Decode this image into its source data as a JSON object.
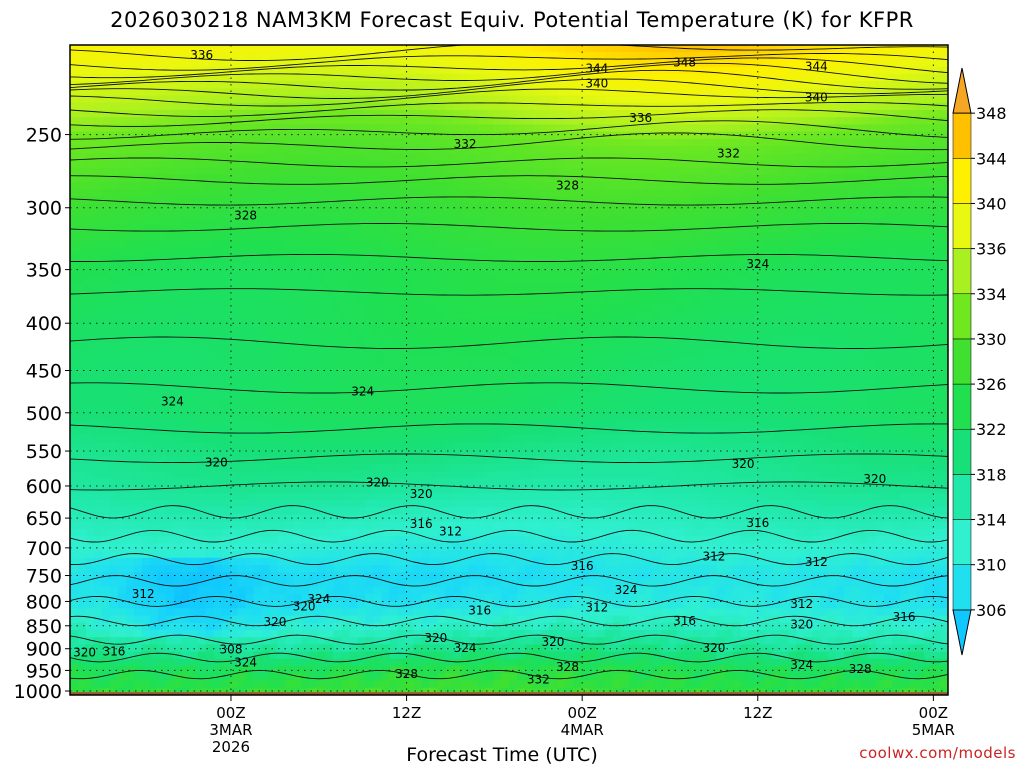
{
  "chart_data": {
    "type": "heatmap",
    "title": "2026030218 NAM3KM Forecast Equiv. Potential Temperature (K) for KFPR",
    "xlabel": "Forecast Time (UTC)",
    "ylabel": "",
    "credit": "coolwx.com/models",
    "y_scale": "log (pressure, hPa)",
    "y_range": [
      200,
      1010
    ],
    "y_ticks": [
      250,
      300,
      350,
      400,
      450,
      500,
      550,
      600,
      650,
      700,
      750,
      800,
      850,
      900,
      950,
      1000
    ],
    "x_range_hours": [
      -5,
      55
    ],
    "x_ticks": [
      {
        "hour": 6,
        "lines": [
          "00Z",
          "3MAR",
          "2026"
        ]
      },
      {
        "hour": 18,
        "lines": [
          "12Z"
        ]
      },
      {
        "hour": 30,
        "lines": [
          "00Z",
          "4MAR"
        ]
      },
      {
        "hour": 42,
        "lines": [
          "12Z"
        ]
      },
      {
        "hour": 54,
        "lines": [
          "00Z",
          "5MAR"
        ]
      }
    ],
    "colorbar": {
      "levels": [
        306,
        310,
        314,
        318,
        322,
        326,
        330,
        334,
        336,
        340,
        344,
        348
      ],
      "colors": [
        "#10c8ff",
        "#20e0f0",
        "#30f0d0",
        "#20e8a8",
        "#18e078",
        "#20e050",
        "#40e030",
        "#70e820",
        "#a8f020",
        "#e8f810",
        "#fff000",
        "#ffc000",
        "#f5a623"
      ]
    },
    "contour_labels": [
      {
        "value": "336",
        "hour": 4,
        "p": 205
      },
      {
        "value": "344",
        "hour": 31,
        "p": 212
      },
      {
        "value": "348",
        "hour": 37,
        "p": 209
      },
      {
        "value": "344",
        "hour": 46,
        "p": 211
      },
      {
        "value": "340",
        "hour": 31,
        "p": 220
      },
      {
        "value": "340",
        "hour": 46,
        "p": 228
      },
      {
        "value": "336",
        "hour": 34,
        "p": 240
      },
      {
        "value": "332",
        "hour": 22,
        "p": 256
      },
      {
        "value": "332",
        "hour": 40,
        "p": 262
      },
      {
        "value": "328",
        "hour": 29,
        "p": 284
      },
      {
        "value": "328",
        "hour": 7,
        "p": 306
      },
      {
        "value": "324",
        "hour": 42,
        "p": 345
      },
      {
        "value": "324",
        "hour": 2,
        "p": 486
      },
      {
        "value": "324",
        "hour": 15,
        "p": 474
      },
      {
        "value": "320",
        "hour": 5,
        "p": 566
      },
      {
        "value": "320",
        "hour": 41,
        "p": 568
      },
      {
        "value": "320",
        "hour": 50,
        "p": 590
      },
      {
        "value": "320",
        "hour": 16,
        "p": 595
      },
      {
        "value": "320",
        "hour": 19,
        "p": 612
      },
      {
        "value": "316",
        "hour": 19,
        "p": 660
      },
      {
        "value": "316",
        "hour": 42,
        "p": 658
      },
      {
        "value": "312",
        "hour": 21,
        "p": 672
      },
      {
        "value": "312",
        "hour": 39,
        "p": 715
      },
      {
        "value": "312",
        "hour": 46,
        "p": 725
      },
      {
        "value": "316",
        "hour": 30,
        "p": 732
      },
      {
        "value": "324",
        "hour": 33,
        "p": 778
      },
      {
        "value": "312",
        "hour": 0,
        "p": 785
      },
      {
        "value": "324",
        "hour": 12,
        "p": 795
      },
      {
        "value": "320",
        "hour": 11,
        "p": 810
      },
      {
        "value": "312",
        "hour": 45,
        "p": 805
      },
      {
        "value": "312",
        "hour": 31,
        "p": 812
      },
      {
        "value": "316",
        "hour": 23,
        "p": 818
      },
      {
        "value": "320",
        "hour": 9,
        "p": 842
      },
      {
        "value": "316",
        "hour": 37,
        "p": 840
      },
      {
        "value": "316",
        "hour": 52,
        "p": 832
      },
      {
        "value": "320",
        "hour": 45,
        "p": 847
      },
      {
        "value": "320",
        "hour": 20,
        "p": 876
      },
      {
        "value": "320",
        "hour": 28,
        "p": 885
      },
      {
        "value": "324",
        "hour": 22,
        "p": 898
      },
      {
        "value": "320",
        "hour": 39,
        "p": 898
      },
      {
        "value": "320",
        "hour": -4,
        "p": 908
      },
      {
        "value": "316",
        "hour": -2,
        "p": 906
      },
      {
        "value": "308",
        "hour": 6,
        "p": 902
      },
      {
        "value": "324",
        "hour": 7,
        "p": 932
      },
      {
        "value": "324",
        "hour": 45,
        "p": 937
      },
      {
        "value": "328",
        "hour": 29,
        "p": 942
      },
      {
        "value": "328",
        "hour": 49,
        "p": 947
      },
      {
        "value": "328",
        "hour": 18,
        "p": 958
      },
      {
        "value": "332",
        "hour": 27,
        "p": 972
      }
    ]
  }
}
